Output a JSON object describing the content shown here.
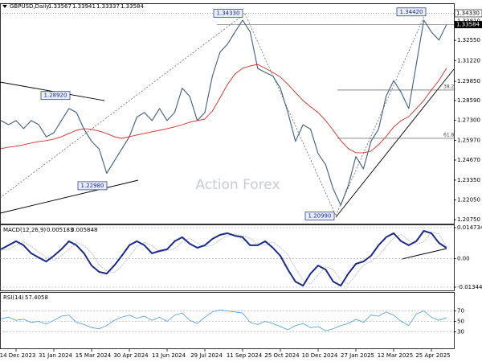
{
  "chart_data": [
    {
      "type": "line",
      "title": "GBPUSD,Daily",
      "last_bar": {
        "open": 1.33567,
        "high": 1.33941,
        "low": 1.33337
      },
      "watermark": "Action Forex",
      "categories": [
        null,
        null,
        "14 Dec 2023",
        null,
        null,
        null,
        null,
        "31 Jan 2024",
        null,
        null,
        null,
        null,
        "15 Mar 2024",
        null,
        null,
        null,
        null,
        "30 Apr 2024",
        null,
        null,
        null,
        null,
        "13 Jun 2024",
        null,
        null,
        null,
        null,
        "29 Jul 2024",
        null,
        null,
        null,
        null,
        "11 Sep 2024",
        null,
        null,
        null,
        null,
        "25 Oct 2024",
        null,
        null,
        null,
        null,
        "10 Dec 2024",
        null,
        null,
        null,
        null,
        "27 Jan 2025",
        null,
        null,
        null,
        null,
        "12 Mar 2025",
        null,
        null,
        null,
        null,
        "25 Apr 2025",
        null,
        null
      ],
      "series": [
        {
          "color": "#3f5f7c",
          "values": [
            1.2727,
            1.27,
            1.2727,
            1.2674,
            1.2727,
            1.27,
            1.262,
            1.2647,
            1.2727,
            1.2806,
            1.278,
            1.267,
            1.259,
            1.254,
            1.238,
            1.246,
            1.254,
            1.262,
            1.275,
            1.278,
            1.2727,
            1.2806,
            1.2727,
            1.278,
            1.294,
            1.2886,
            1.2727,
            1.278,
            1.302,
            1.3176,
            1.323,
            1.331,
            1.3388,
            1.331,
            1.307,
            1.3044,
            1.302,
            1.294,
            1.278,
            1.259,
            1.27,
            1.267,
            1.251,
            1.2436,
            1.2277,
            1.217,
            1.23,
            1.249,
            1.2409,
            1.259,
            1.267,
            1.2886,
            1.299,
            1.2912,
            1.2806,
            1.3097,
            1.3388,
            1.331,
            1.3256,
            1.33584
          ]
        },
        {
          "color": "#e02828",
          "values": [
            1.2542,
            1.2552,
            1.2558,
            1.2568,
            1.2579,
            1.2589,
            1.2595,
            1.2605,
            1.2621,
            1.2642,
            1.2663,
            1.2674,
            1.2669,
            1.2658,
            1.2642,
            1.2621,
            1.261,
            1.2621,
            1.2632,
            1.2642,
            1.2653,
            1.2663,
            1.2674,
            1.2685,
            1.27,
            1.2716,
            1.2727,
            1.2737,
            1.279,
            1.2875,
            1.2965,
            1.3034,
            1.3071,
            1.3087,
            1.3097,
            1.3071,
            1.3044,
            1.3013,
            1.2965,
            1.2912,
            1.2859,
            1.2817,
            1.278,
            1.2727,
            1.2663,
            1.2595,
            1.2542,
            1.2515,
            1.2515,
            1.2526,
            1.2568,
            1.2621,
            1.2685,
            1.2727,
            1.2753,
            1.2806,
            1.2859,
            1.2928,
            1.2991,
            1.3071
          ]
        }
      ],
      "ylim": [
        1.2054,
        1.3478
      ],
      "yticks": [
        {
          "value": 1.3381,
          "label": "1.33810"
        },
        {
          "value": 1.3255,
          "label": "1.32550"
        },
        {
          "value": 1.3122,
          "label": "1.31220"
        },
        {
          "value": 1.2985,
          "label": "1.29850"
        },
        {
          "value": 1.2859,
          "label": "1.28590"
        },
        {
          "value": 1.273,
          "label": "1.27300"
        },
        {
          "value": 1.2597,
          "label": "1.25970"
        },
        {
          "value": 1.2467,
          "label": "1.24670"
        },
        {
          "value": 1.2335,
          "label": "1.23350"
        },
        {
          "value": 1.2205,
          "label": "1.22050"
        },
        {
          "value": 1.2075,
          "label": "1.20750"
        }
      ],
      "annotations": [
        {
          "label": "1.34330",
          "value": 1.3433
        },
        {
          "label": "1.34420",
          "value": 1.3442
        },
        {
          "label": "1.28920",
          "value": 1.2892
        },
        {
          "label": "1.22980",
          "value": 1.2298
        },
        {
          "label": "1.20990",
          "value": 1.2099
        }
      ],
      "fib_levels": [
        {
          "label": 38.2,
          "price": 1.2928
        },
        {
          "label": 61.8,
          "price": 1.261
        }
      ]
    },
    {
      "type": "line",
      "title": "MACD(12,26,9)",
      "series": [
        {
          "color": "#1a2a8a",
          "values": [
            0.0045,
            0.0064,
            0.0083,
            0.0064,
            0.0026,
            0.0006,
            -0.0013,
            0.0014,
            0.0045,
            0.0083,
            0.0064,
            0.0026,
            -0.0032,
            -0.0062,
            -0.007,
            -0.0032,
            0.0014,
            0.0064,
            0.0083,
            0.0064,
            0.0026,
            0.0037,
            0.0045,
            0.0083,
            0.0102,
            0.0071,
            0.0052,
            0.0064,
            0.0094,
            0.0113,
            0.0121,
            0.0109,
            0.0102,
            0.0064,
            0.0064,
            0.0083,
            0.0052,
            0.0014,
            -0.0051,
            -0.0108,
            -0.0127,
            -0.007,
            -0.0032,
            -0.0051,
            -0.0108,
            -0.0127,
            -0.007,
            -0.0024,
            -0.0013,
            0.0014,
            0.0064,
            0.0102,
            0.0121,
            0.0083,
            0.0064,
            0.0083,
            0.0132,
            0.0121,
            0.0075,
            0.005183
          ]
        },
        {
          "color": "#bdbdbd",
          "values": [
            0.004,
            0.0045,
            0.0064,
            0.008,
            0.006,
            0.003,
            0.0008,
            -0.0008,
            0.0016,
            0.0045,
            0.0078,
            0.0062,
            0.0028,
            -0.0028,
            -0.0058,
            -0.0066,
            -0.0034,
            0.001,
            0.0058,
            0.0078,
            0.0062,
            0.0032,
            0.0038,
            0.0047,
            0.008,
            0.0098,
            0.0074,
            0.0056,
            0.0064,
            0.009,
            0.011,
            0.0118,
            0.0108,
            0.0098,
            0.0068,
            0.0066,
            0.008,
            0.0054,
            0.0018,
            -0.0044,
            -0.01,
            -0.012,
            -0.0076,
            -0.0038,
            -0.005,
            -0.0102,
            -0.012,
            -0.0076,
            -0.003,
            -0.0012,
            0.0012,
            0.006,
            0.0098,
            0.0116,
            0.0086,
            0.0068,
            0.008,
            0.0126,
            0.0118,
            0.005848
          ]
        }
      ],
      "ylim": [
        -0.013442,
        0.014734
      ],
      "yticks": [
        0.014734,
        {
          "value": 0,
          "label": "0.00"
        },
        -0.013442
      ]
    },
    {
      "type": "line",
      "title": "RSI(14)",
      "series": [
        {
          "color": "#4a9be0",
          "values": [
            55,
            58,
            52,
            54,
            48,
            50,
            45,
            52,
            60,
            62,
            48,
            44,
            38,
            36,
            42,
            52,
            58,
            62,
            56,
            60,
            52,
            58,
            50,
            62,
            66,
            52,
            46,
            58,
            68,
            72,
            70,
            68,
            66,
            48,
            44,
            50,
            46,
            40,
            34,
            42,
            46,
            38,
            40,
            32,
            36,
            42,
            46,
            54,
            48,
            62,
            60,
            68,
            62,
            50,
            42,
            64,
            70,
            58,
            52,
            57.4058
          ]
        }
      ],
      "ylim": [
        0,
        100
      ],
      "yticks": [
        70,
        50,
        30
      ]
    }
  ]
}
